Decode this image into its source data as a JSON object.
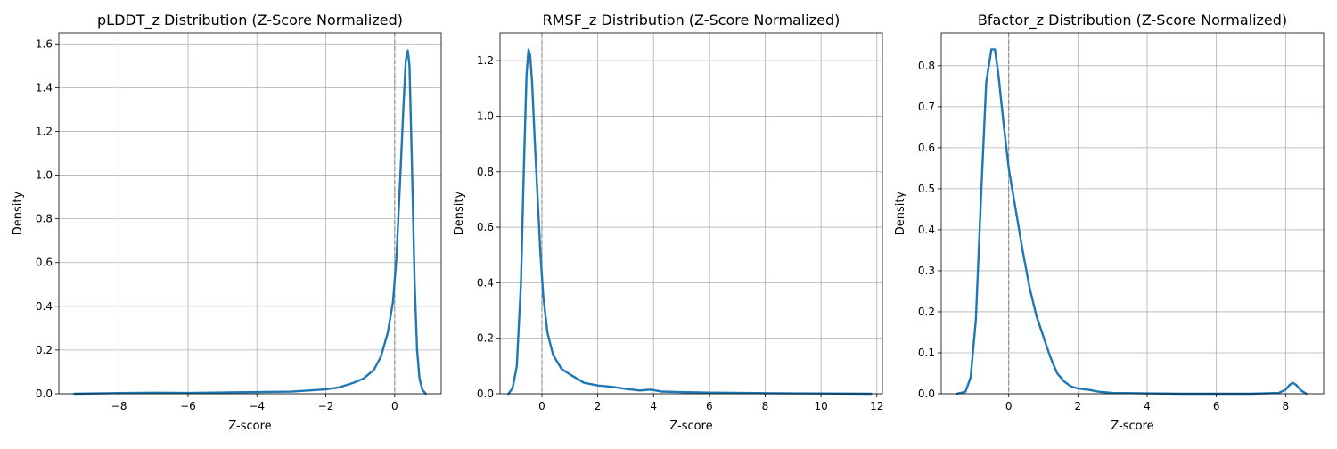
{
  "colors": {
    "line": "#1f77b4",
    "grid": "#b0b0b0",
    "zero_line": "#808080"
  },
  "chart_data": [
    {
      "type": "line",
      "title": "pLDDT_z Distribution (Z-Score Normalized)",
      "xlabel": "Z-score",
      "ylabel": "Density",
      "xlim": [
        -9.75,
        1.35
      ],
      "ylim": [
        0,
        1.65
      ],
      "xticks": [
        -8,
        -6,
        -4,
        -2,
        0
      ],
      "xtick_labels": [
        "−8",
        "−6",
        "−4",
        "−2",
        "0"
      ],
      "yticks": [
        0,
        0.2,
        0.4,
        0.6,
        0.8,
        1.0,
        1.2,
        1.4,
        1.6
      ],
      "ytick_labels": [
        "0.0",
        "0.2",
        "0.4",
        "0.6",
        "0.8",
        "1.0",
        "1.2",
        "1.4",
        "1.6"
      ],
      "grid": true,
      "vline_x": 0,
      "series": [
        {
          "x": [
            -9.3,
            -8.0,
            -7.0,
            -6.0,
            -5.0,
            -4.0,
            -3.0,
            -2.0,
            -1.6,
            -1.2,
            -0.9,
            -0.6,
            -0.4,
            -0.2,
            -0.05,
            0.05,
            0.15,
            0.25,
            0.32,
            0.38,
            0.43,
            0.5,
            0.58,
            0.65,
            0.72,
            0.8,
            0.9
          ],
          "y": [
            0.0,
            0.003,
            0.005,
            0.004,
            0.006,
            0.008,
            0.01,
            0.02,
            0.03,
            0.05,
            0.07,
            0.11,
            0.17,
            0.28,
            0.42,
            0.62,
            0.95,
            1.3,
            1.52,
            1.57,
            1.5,
            1.05,
            0.5,
            0.2,
            0.07,
            0.02,
            0.0
          ]
        }
      ]
    },
    {
      "type": "line",
      "title": "RMSF_z Distribution (Z-Score Normalized)",
      "xlabel": "Z-score",
      "ylabel": "Density",
      "xlim": [
        -1.5,
        12.2
      ],
      "ylim": [
        0,
        1.3
      ],
      "xticks": [
        0,
        2,
        4,
        6,
        8,
        10,
        12
      ],
      "xtick_labels": [
        "0",
        "2",
        "4",
        "6",
        "8",
        "10",
        "12"
      ],
      "yticks": [
        0,
        0.2,
        0.4,
        0.6,
        0.8,
        1.0,
        1.2
      ],
      "ytick_labels": [
        "0.0",
        "0.2",
        "0.4",
        "0.6",
        "0.8",
        "1.0",
        "1.2"
      ],
      "grid": true,
      "vline_x": 0,
      "series": [
        {
          "x": [
            -1.2,
            -1.05,
            -0.9,
            -0.75,
            -0.65,
            -0.55,
            -0.48,
            -0.42,
            -0.35,
            -0.25,
            -0.15,
            -0.05,
            0.05,
            0.2,
            0.4,
            0.7,
            1.0,
            1.5,
            2.0,
            2.5,
            3.0,
            3.5,
            3.9,
            4.3,
            5.0,
            6.0,
            8.0,
            10.0,
            11.8
          ],
          "y": [
            0.0,
            0.02,
            0.1,
            0.4,
            0.8,
            1.15,
            1.24,
            1.22,
            1.12,
            0.9,
            0.7,
            0.5,
            0.35,
            0.22,
            0.14,
            0.09,
            0.07,
            0.04,
            0.03,
            0.025,
            0.018,
            0.012,
            0.015,
            0.008,
            0.006,
            0.004,
            0.002,
            0.001,
            0.0
          ]
        }
      ]
    },
    {
      "type": "line",
      "title": "Bfactor_z Distribution (Z-Score Normalized)",
      "xlabel": "Z-score",
      "ylabel": "Density",
      "xlim": [
        -1.95,
        9.1
      ],
      "ylim": [
        0,
        0.88
      ],
      "xticks": [
        0,
        2,
        4,
        6,
        8
      ],
      "xtick_labels": [
        "0",
        "2",
        "4",
        "6",
        "8"
      ],
      "yticks": [
        0,
        0.1,
        0.2,
        0.3,
        0.4,
        0.5,
        0.6,
        0.7,
        0.8
      ],
      "ytick_labels": [
        "0.0",
        "0.1",
        "0.2",
        "0.3",
        "0.4",
        "0.5",
        "0.6",
        "0.7",
        "0.8"
      ],
      "grid": true,
      "vline_x": 0,
      "series": [
        {
          "x": [
            -1.5,
            -1.25,
            -1.1,
            -0.95,
            -0.8,
            -0.65,
            -0.5,
            -0.4,
            -0.3,
            -0.15,
            0.0,
            0.2,
            0.4,
            0.6,
            0.8,
            1.0,
            1.2,
            1.4,
            1.6,
            1.8,
            2.0,
            2.3,
            2.6,
            3.0,
            4.0,
            5.0,
            6.0,
            7.0,
            7.8,
            8.0,
            8.1,
            8.2,
            8.3,
            8.45,
            8.6
          ],
          "y": [
            0.0,
            0.005,
            0.04,
            0.18,
            0.48,
            0.76,
            0.84,
            0.84,
            0.78,
            0.66,
            0.55,
            0.45,
            0.35,
            0.26,
            0.19,
            0.14,
            0.09,
            0.05,
            0.03,
            0.018,
            0.013,
            0.01,
            0.005,
            0.002,
            0.001,
            0.0,
            0.0,
            0.0,
            0.002,
            0.01,
            0.02,
            0.027,
            0.022,
            0.008,
            0.0
          ]
        }
      ]
    }
  ]
}
